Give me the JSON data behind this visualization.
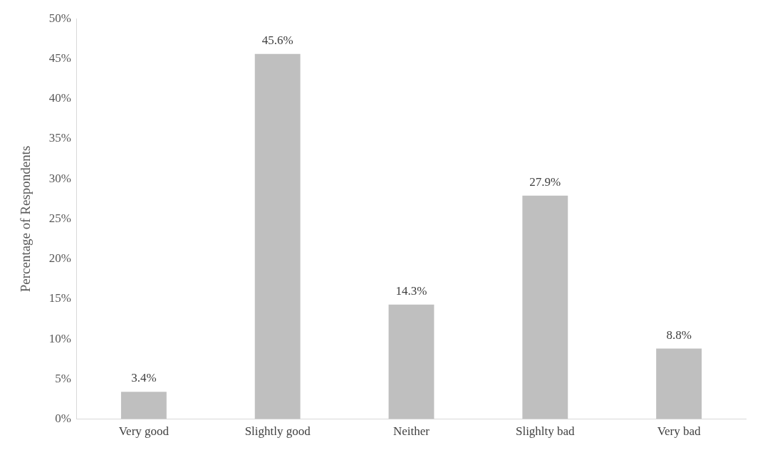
{
  "chart_data": {
    "type": "bar",
    "ylabel": "Percentage of Respondents",
    "categories": [
      "Very good",
      "Slightly good",
      "Neither",
      "Slighlty bad",
      "Very bad"
    ],
    "values": [
      3.4,
      45.6,
      14.3,
      27.9,
      8.8
    ],
    "value_labels": [
      "3.4%",
      "45.6%",
      "14.3%",
      "27.9%",
      "8.8%"
    ],
    "color": "#bfbfbf",
    "ylim": [
      0,
      50
    ],
    "yticks": [
      {
        "value": 0,
        "label": "0%"
      },
      {
        "value": 5,
        "label": "5%"
      },
      {
        "value": 10,
        "label": "10%"
      },
      {
        "value": 15,
        "label": "15%"
      },
      {
        "value": 20,
        "label": "20%"
      },
      {
        "value": 25,
        "label": "25%"
      },
      {
        "value": 30,
        "label": "30%"
      },
      {
        "value": 35,
        "label": "35%"
      },
      {
        "value": 40,
        "label": "40%"
      },
      {
        "value": 45,
        "label": "45%"
      },
      {
        "value": 50,
        "label": "50%"
      }
    ],
    "grid": false,
    "legend": false
  }
}
